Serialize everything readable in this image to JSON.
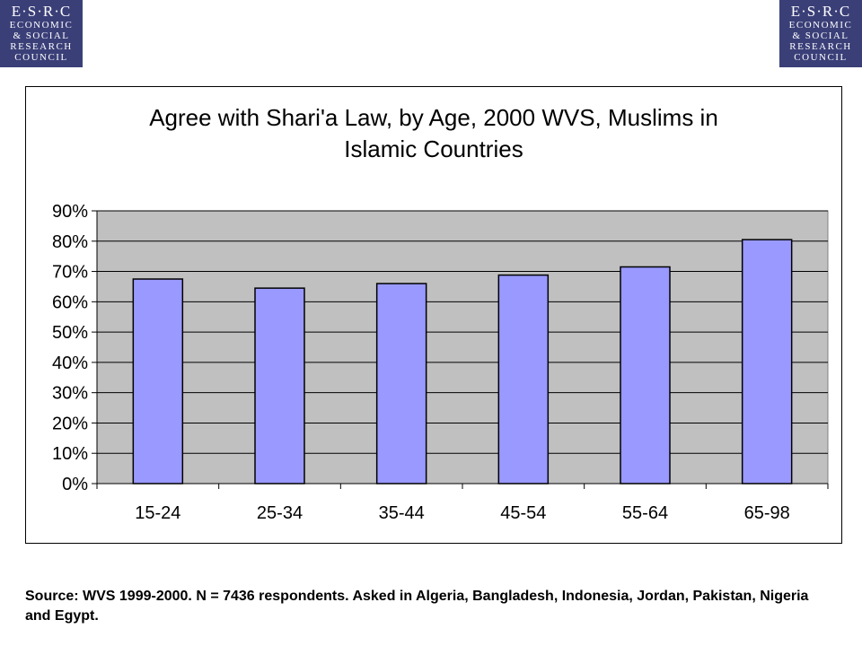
{
  "logo": {
    "line1": "E·S·R·C",
    "line2": "ECONOMIC",
    "line3": "& SOCIAL",
    "line4": "RESEARCH",
    "line5": "COUNCIL"
  },
  "chart_data": {
    "type": "bar",
    "title_line1": "Agree with Shari'a Law, by Age, 2000 WVS, Muslims in",
    "title_line2": "Islamic Countries",
    "categories": [
      "15-24",
      "25-34",
      "35-44",
      "45-54",
      "55-64",
      "65-98"
    ],
    "values": [
      67.5,
      64.5,
      66,
      68.8,
      71.5,
      80.5
    ],
    "y_ticks": [
      "0%",
      "10%",
      "20%",
      "30%",
      "40%",
      "50%",
      "60%",
      "70%",
      "80%",
      "90%"
    ],
    "ylim": [
      0,
      90
    ],
    "unit": "%",
    "grid": true,
    "colors": {
      "bar": "#9999ff",
      "plot_bg": "#c0c0c0",
      "axis": "#000000"
    }
  },
  "source": "Source: WVS 1999-2000. N = 7436 respondents. Asked in Algeria, Bangladesh, Indonesia, Jordan, Pakistan, Nigeria and Egypt."
}
